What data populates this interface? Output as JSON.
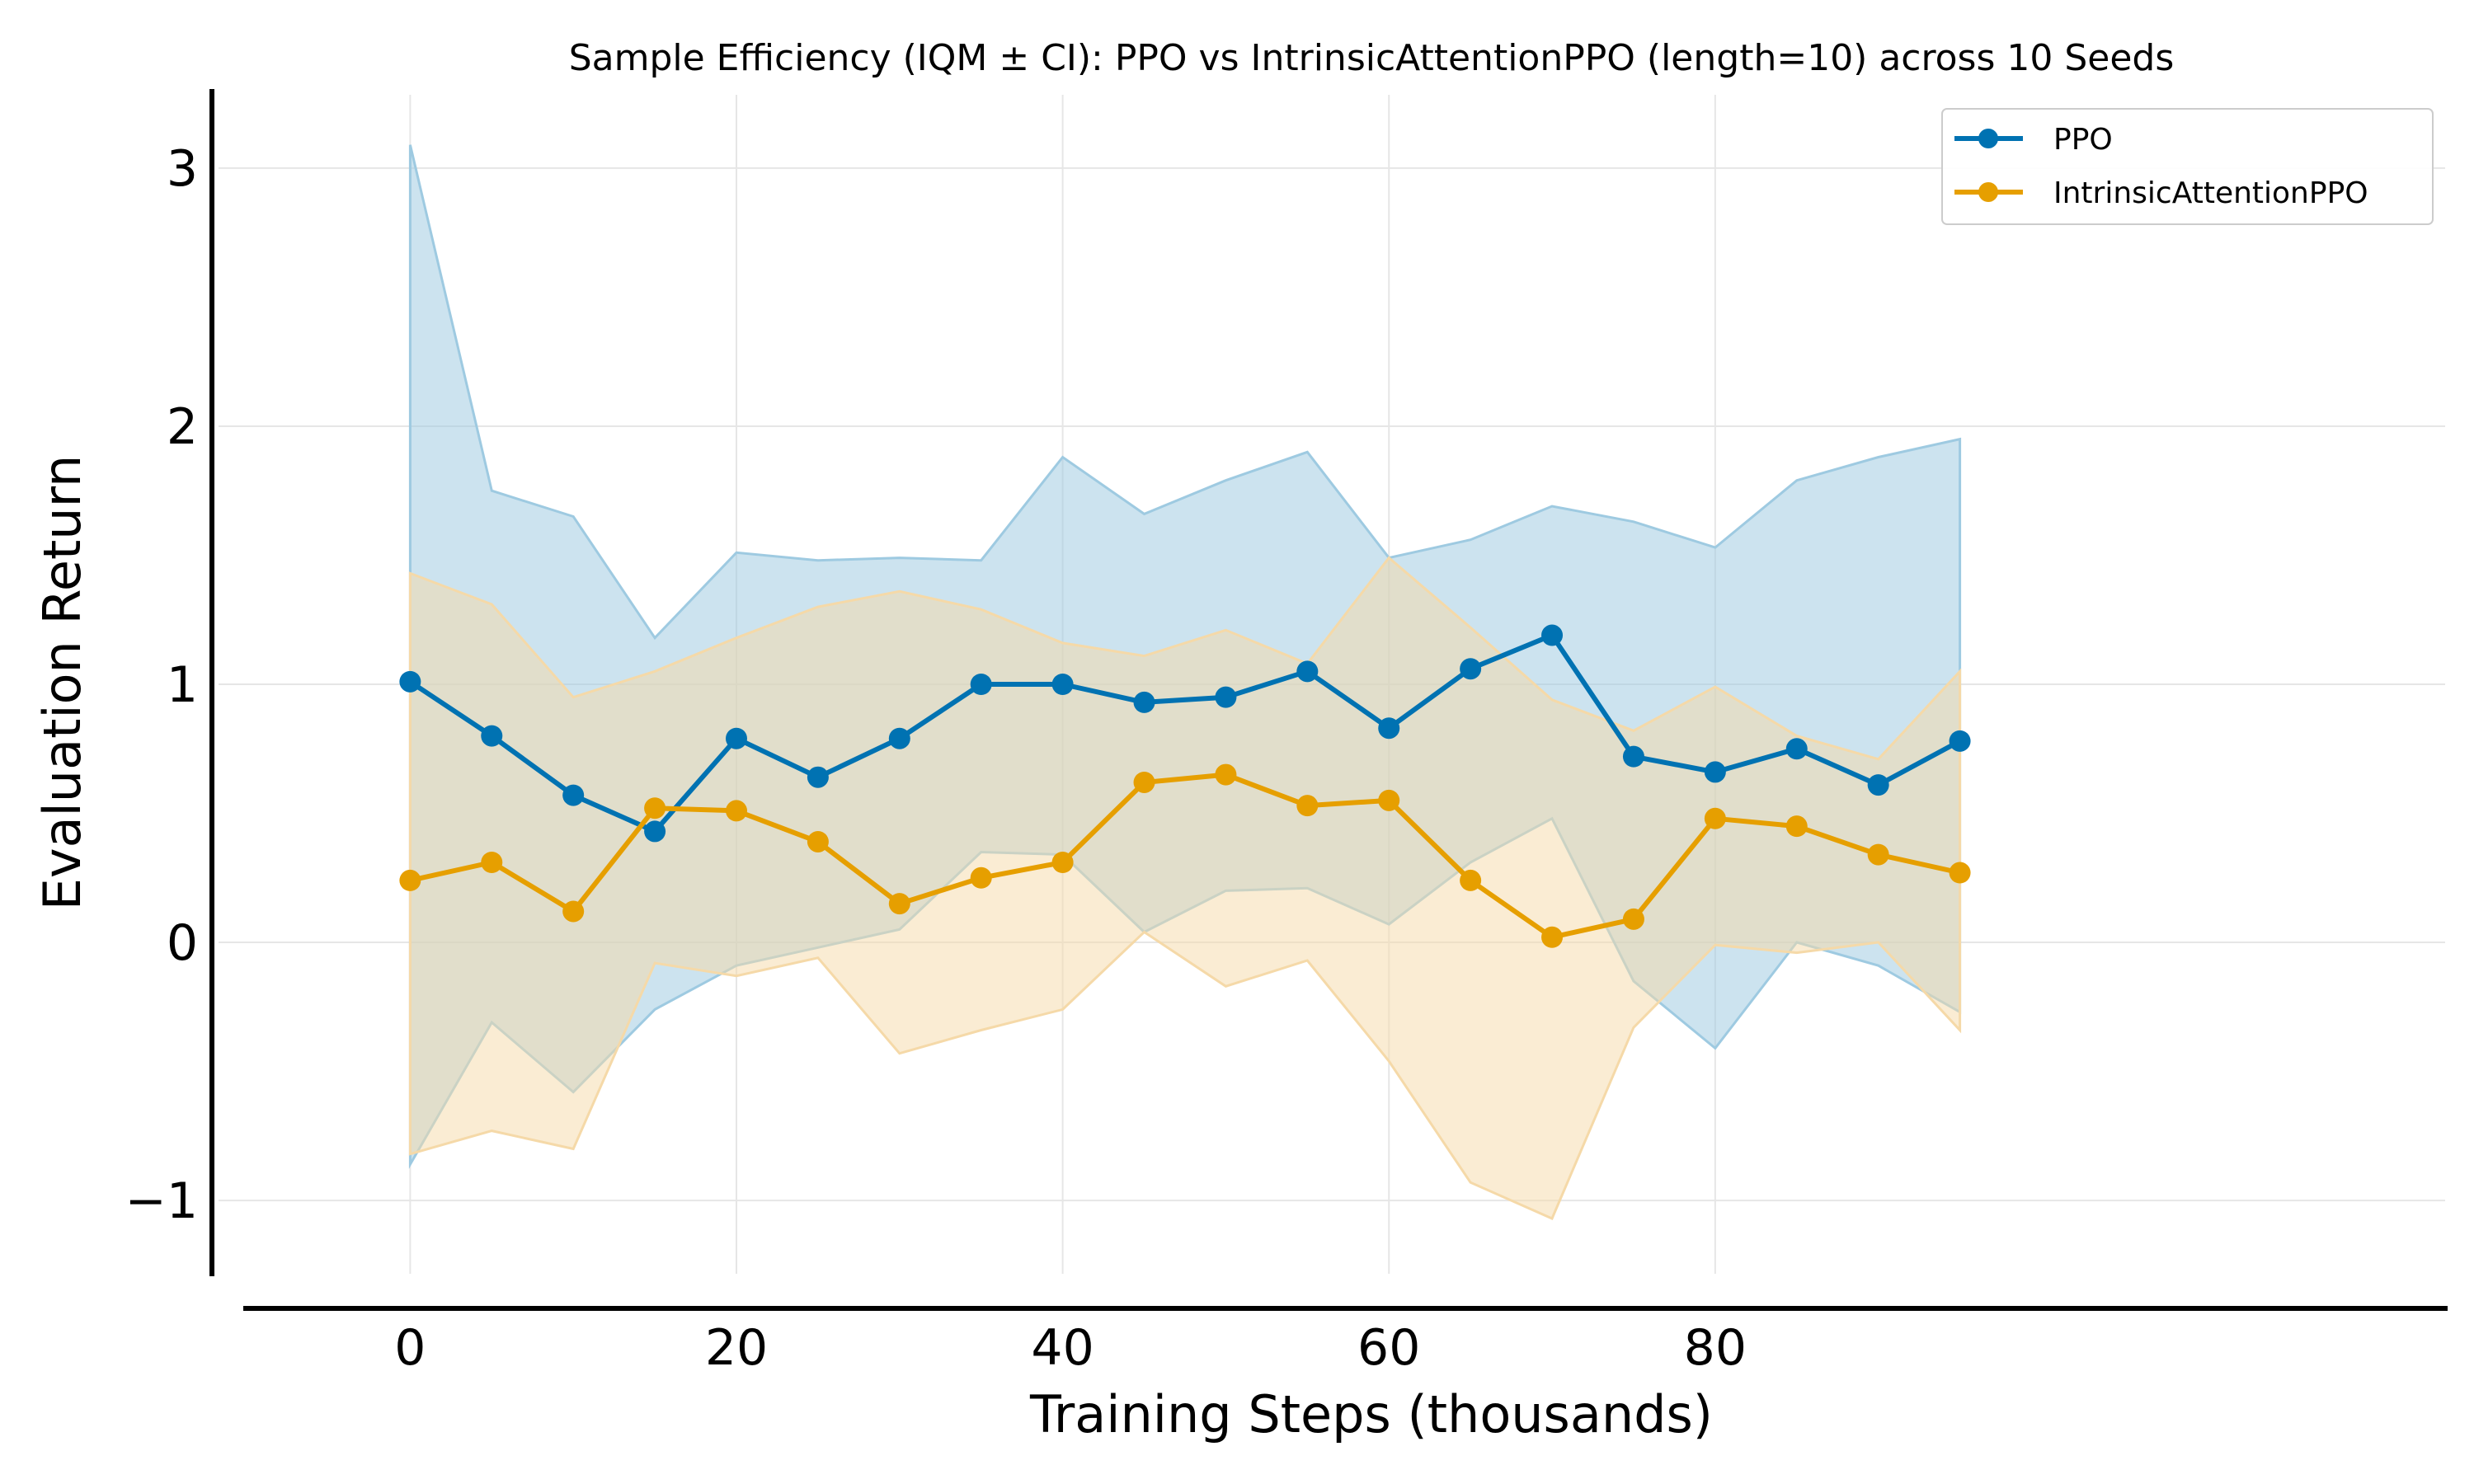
{
  "chart_data": {
    "type": "line",
    "title": "Sample Efficiency (IQM ± CI): PPO vs IntrinsicAttentionPPO (length=10) across 10 Seeds",
    "xlabel": "Training Steps (thousands)",
    "ylabel": "Evaluation Return",
    "xlim": [
      -12,
      125
    ],
    "ylim": [
      -1.3,
      3.3
    ],
    "xticks": [
      0,
      20,
      40,
      60,
      80
    ],
    "yticks": [
      -1,
      0,
      1,
      2,
      3
    ],
    "ytick_labels": [
      "−1",
      "0",
      "1",
      "2",
      "3"
    ],
    "grid": true,
    "legend_position": "top-right",
    "x": [
      0,
      5,
      10,
      15,
      20,
      25,
      30,
      35,
      40,
      45,
      50,
      55,
      60,
      65,
      70,
      75,
      80,
      85,
      90,
      95
    ],
    "series": [
      {
        "name": "PPO",
        "color": "#0072B2",
        "band_color": "#9ecae1",
        "values": [
          1.01,
          0.8,
          0.57,
          0.43,
          0.79,
          0.64,
          0.79,
          1.0,
          1.0,
          0.93,
          0.95,
          1.05,
          0.83,
          1.06,
          1.19,
          0.72,
          0.66,
          0.75,
          0.61,
          0.78
        ],
        "upper": [
          3.09,
          1.75,
          1.65,
          1.18,
          1.51,
          1.48,
          1.49,
          1.48,
          1.88,
          1.66,
          1.79,
          1.9,
          1.49,
          1.56,
          1.69,
          1.63,
          1.53,
          1.79,
          1.88,
          1.95
        ],
        "lower": [
          -0.86,
          -0.31,
          -0.58,
          -0.26,
          -0.09,
          -0.02,
          0.05,
          0.35,
          0.34,
          0.04,
          0.2,
          0.21,
          0.07,
          0.31,
          0.48,
          -0.15,
          -0.41,
          0.0,
          -0.09,
          -0.27
        ]
      },
      {
        "name": "IntrinsicAttentionPPO",
        "color": "#E69F00",
        "band_color": "#f5d9a8",
        "values": [
          0.24,
          0.31,
          0.12,
          0.52,
          0.51,
          0.39,
          0.15,
          0.25,
          0.31,
          0.62,
          0.65,
          0.53,
          0.55,
          0.24,
          0.02,
          0.09,
          0.48,
          0.45,
          0.34,
          0.27
        ],
        "upper": [
          1.43,
          1.31,
          0.95,
          1.05,
          1.18,
          1.3,
          1.36,
          1.29,
          1.16,
          1.11,
          1.21,
          1.08,
          1.49,
          1.22,
          0.94,
          0.82,
          0.99,
          0.8,
          0.71,
          1.05
        ],
        "lower": [
          -0.82,
          -0.73,
          -0.8,
          -0.08,
          -0.13,
          -0.06,
          -0.43,
          -0.34,
          -0.26,
          0.04,
          -0.17,
          -0.07,
          -0.46,
          -0.93,
          -1.07,
          -0.33,
          -0.01,
          -0.04,
          0.0,
          -0.34
        ]
      }
    ]
  }
}
